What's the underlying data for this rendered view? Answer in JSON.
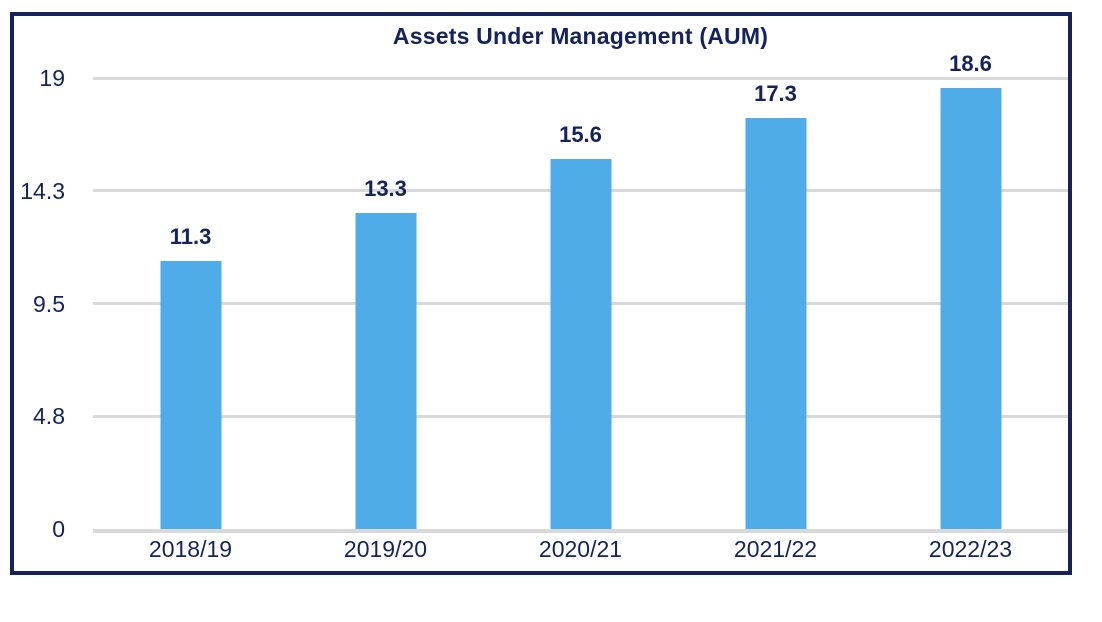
{
  "chart_data": {
    "type": "bar",
    "title": "Assets Under Management (AUM)",
    "categories": [
      "2018/19",
      "2019/20",
      "2020/21",
      "2021/22",
      "2022/23"
    ],
    "values": [
      11.3,
      13.3,
      15.6,
      17.3,
      18.6
    ],
    "value_labels": [
      "11.3",
      "13.3",
      "15.6",
      "17.3",
      "18.6"
    ],
    "xlabel": "",
    "ylabel": "",
    "ylim": [
      0,
      19
    ],
    "yticks": [
      {
        "label": "0",
        "value": 0
      },
      {
        "label": "4.8",
        "value": 4.75
      },
      {
        "label": "9.5",
        "value": 9.5
      },
      {
        "label": "14.3",
        "value": 14.25
      },
      {
        "label": "19",
        "value": 19
      }
    ],
    "grid": true,
    "legend": false,
    "layout": {
      "legend_position": "none",
      "bars_color_uniform": true
    },
    "colors": {
      "bar": "#4FACE8",
      "text": "#14235C",
      "gridline": "#D9D9D9",
      "frame_border": "#14235C",
      "background": "#FFFFFF"
    }
  }
}
